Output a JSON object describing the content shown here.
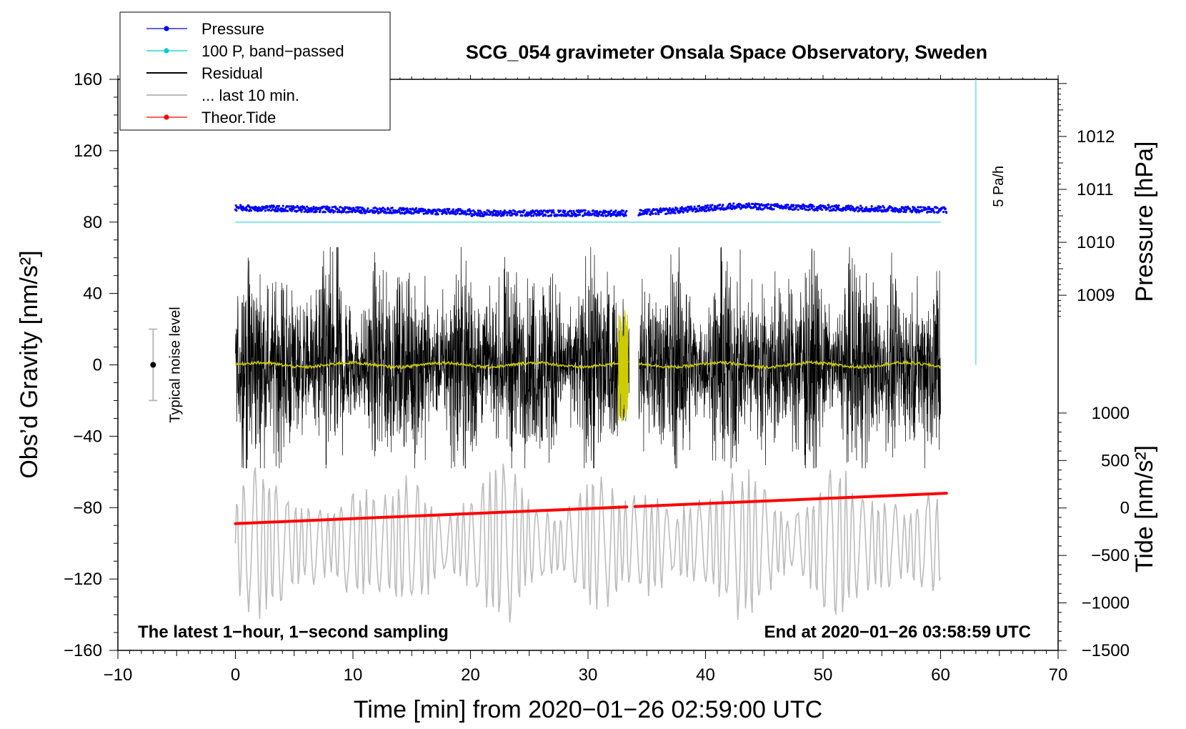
{
  "chart_data": {
    "type": "line",
    "title": "SCG_054 gravimeter Onsala Space Observatory, Sweden",
    "xlabel": "Time [min] from 2020−01−26 02:59:00 UTC",
    "ylabel_left": "Obs’d Gravity [nm/s²]",
    "ylabel_right_pressure": "Pressure [hPa]",
    "ylabel_right_tide": "Tide [nm/s²]",
    "xlim": [
      -10,
      70
    ],
    "ylim": [
      -160,
      160
    ],
    "x_ticks": [
      {
        "value": -10,
        "label": "−10"
      },
      {
        "value": 0,
        "label": "0"
      },
      {
        "value": 10,
        "label": "10"
      },
      {
        "value": 20,
        "label": "20"
      },
      {
        "value": 30,
        "label": "30"
      },
      {
        "value": 40,
        "label": "40"
      },
      {
        "value": 50,
        "label": "50"
      },
      {
        "value": 60,
        "label": "60"
      },
      {
        "value": 70,
        "label": "70"
      }
    ],
    "y_ticks": [
      {
        "value": 160,
        "label": "160"
      },
      {
        "value": 120,
        "label": "120"
      },
      {
        "value": 80,
        "label": "80"
      },
      {
        "value": 40,
        "label": "40"
      },
      {
        "value": 0,
        "label": "0"
      },
      {
        "value": -40,
        "label": "−40"
      },
      {
        "value": -80,
        "label": "−80"
      },
      {
        "value": -120,
        "label": "−120"
      },
      {
        "value": -160,
        "label": "−160"
      }
    ],
    "pressure_axis": {
      "ticks": [
        {
          "value": 1012,
          "label": "1012"
        },
        {
          "value": 1011,
          "label": "1011"
        },
        {
          "value": 1010,
          "label": "1010"
        },
        {
          "value": 1009,
          "label": "1009"
        }
      ],
      "gravity_equivalent": [
        [
          1009,
          39
        ],
        [
          1012,
          128
        ]
      ]
    },
    "tide_axis": {
      "ticks": [
        {
          "value": 1000,
          "label": "1000"
        },
        {
          "value": 500,
          "label": "500"
        },
        {
          "value": 0,
          "label": "0"
        },
        {
          "value": -500,
          "label": "−500"
        },
        {
          "value": -1000,
          "label": "−1000"
        },
        {
          "value": -1500,
          "label": "−1500"
        }
      ],
      "gravity_equivalent": [
        [
          1000,
          -27
        ],
        [
          -1500,
          -160
        ]
      ]
    },
    "legend": {
      "position": "top-left",
      "entries": [
        {
          "label": "Pressure",
          "color": "#0000ff",
          "style": "line-dot"
        },
        {
          "label": "100 P, band−passed",
          "color": "#00cccc",
          "style": "line-dot"
        },
        {
          "label": "Residual",
          "color": "#000000",
          "style": "line"
        },
        {
          "label": "... last 10 min.",
          "color": "#bbbbbb",
          "style": "line"
        },
        {
          "label": "Theor.Tide",
          "color": "#ff0000",
          "style": "line-dot"
        }
      ]
    },
    "series": [
      {
        "name": "Pressure",
        "color": "#0000ff",
        "x_range": [
          0,
          60.5
        ],
        "gap": [
          33.3,
          34.3
        ],
        "y_level_gravity": 86,
        "noise": 1.5
      },
      {
        "name": "100 P, band−passed",
        "color": "#66dddd",
        "x_range": [
          0,
          60
        ],
        "y_level_gravity": 80
      },
      {
        "name": "Residual",
        "color": "#000000",
        "x_range": [
          0,
          60
        ],
        "gap": [
          33.5,
          34.3
        ],
        "amplitude_range": [
          -58,
          66
        ]
      },
      {
        "name": "Residual smoothed",
        "color": "#cccc00",
        "x_range": [
          0,
          60
        ],
        "gap": [
          33.5,
          34.3
        ],
        "y_level_gravity": 0
      },
      {
        "name": "... last 10 min.",
        "color": "#bbbbbb",
        "x_range": [
          0,
          60
        ],
        "amplitude_range": [
          -148,
          -52
        ]
      },
      {
        "name": "Theor.Tide",
        "color": "#ff0000",
        "x_range": [
          0,
          60.5
        ],
        "gap": [
          33.3,
          34.0
        ],
        "tide_start_nm_s2": -165,
        "tide_end_nm_s2": 155
      }
    ],
    "annotations": {
      "noise_label": "Typical noise level",
      "noise_bar": {
        "x": -7,
        "center": 0,
        "half_range": 20
      },
      "pressure_rate_label": "5 Pa/h",
      "pressure_rate_bar": {
        "x": 63,
        "y_from": 0,
        "y_to": 160
      },
      "bottom_left": "The latest 1−hour, 1−second sampling",
      "bottom_right": "End at 2020−01−26 03:58:59 UTC"
    }
  }
}
